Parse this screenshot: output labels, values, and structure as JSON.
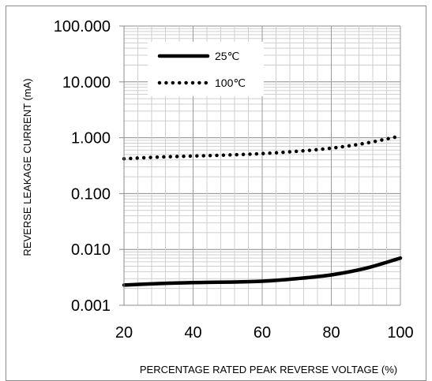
{
  "chart_data": {
    "type": "line",
    "title": "",
    "xlabel": "PERCENTAGE RATED PEAK REVERSE VOLTAGE (%)",
    "ylabel": "REVERSE LEAKAGE CURRENT (mA)",
    "xlim": [
      20,
      100
    ],
    "ylim": [
      0.001,
      100
    ],
    "yscale": "log",
    "grid": true,
    "legend_position": "top-left",
    "x_ticks": [
      "20",
      "40",
      "60",
      "80",
      "100"
    ],
    "y_ticks": [
      "0.001",
      "0.010",
      "0.100",
      "1.000",
      "10.000",
      "100.000"
    ],
    "series": [
      {
        "name": "25℃",
        "style": "solid",
        "color": "#000000",
        "x": [
          20,
          30,
          40,
          50,
          60,
          70,
          80,
          90,
          100
        ],
        "y": [
          0.0023,
          0.00245,
          0.00255,
          0.0026,
          0.0027,
          0.003,
          0.0035,
          0.0046,
          0.007
        ]
      },
      {
        "name": "100℃",
        "style": "dotted",
        "color": "#000000",
        "x": [
          20,
          30,
          40,
          50,
          60,
          70,
          80,
          90,
          100
        ],
        "y": [
          0.42,
          0.45,
          0.47,
          0.49,
          0.52,
          0.57,
          0.65,
          0.8,
          1.07
        ]
      }
    ]
  }
}
